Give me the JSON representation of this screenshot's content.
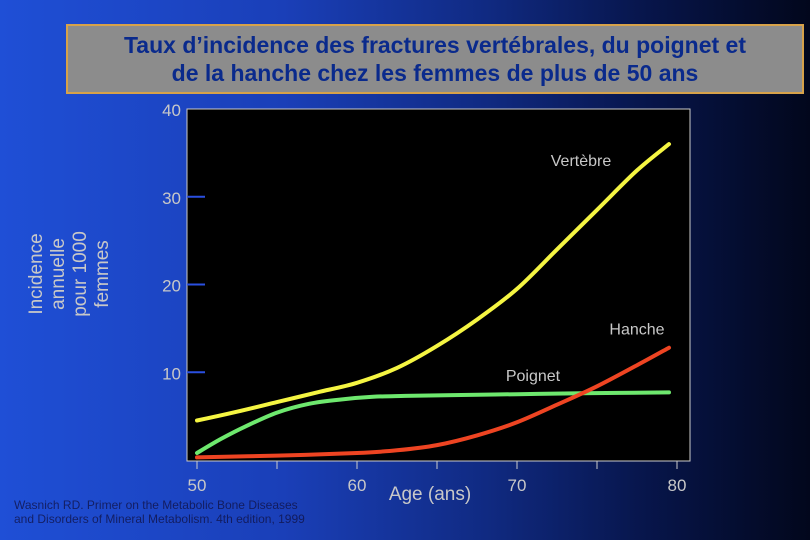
{
  "chart_data": {
    "type": "line",
    "title": "Taux d’incidence des fractures vertébrales, du poignet et\nde la hanche chez les femmes de plus de 50 ans",
    "xlabel": "Age (ans)",
    "ylabel": "Incidence annuelle\npour 1000 femmes",
    "xlim": [
      50,
      80
    ],
    "ylim": [
      0,
      40
    ],
    "x_ticks": [
      50,
      60,
      70,
      80
    ],
    "y_ticks": [
      10,
      20,
      30,
      40
    ],
    "grid": false,
    "series": [
      {
        "name": "Vertèbre",
        "color": "#f5f542",
        "x": [
          50,
          52.5,
          55,
          57.5,
          60,
          62.5,
          65,
          67.5,
          70,
          72.5,
          75,
          77.5,
          79.5
        ],
        "y": [
          4.5,
          5.5,
          6.6,
          7.7,
          8.8,
          10.5,
          13.0,
          16.0,
          19.5,
          24.0,
          28.5,
          33.0,
          36.0
        ]
      },
      {
        "name": "Poignet",
        "color": "#6ee86e",
        "x": [
          50,
          51.5,
          53,
          55,
          57,
          59,
          61,
          63,
          66,
          70,
          74,
          79.5
        ],
        "y": [
          0.8,
          2.4,
          3.8,
          5.4,
          6.4,
          6.9,
          7.2,
          7.3,
          7.4,
          7.5,
          7.6,
          7.7
        ]
      },
      {
        "name": "Hanche",
        "color": "#ee4422",
        "x": [
          50,
          55,
          60,
          62.5,
          65,
          67.5,
          70,
          72.5,
          75,
          77.5,
          79.5
        ],
        "y": [
          0.3,
          0.5,
          0.8,
          1.1,
          1.7,
          2.8,
          4.3,
          6.3,
          8.4,
          10.8,
          12.8
        ]
      }
    ],
    "annotations": [
      {
        "text": "Vertèbre",
        "x": 74,
        "y": 33.5
      },
      {
        "text": "Hanche",
        "x": 77.5,
        "y": 14.3
      },
      {
        "text": "Poignet",
        "x": 71,
        "y": 9.0
      }
    ],
    "source_note": "Wasnich RD. Primer on the Metabolic Bone Diseases\nand Disorders of Mineral Metabolism. 4th edition, 1999"
  }
}
